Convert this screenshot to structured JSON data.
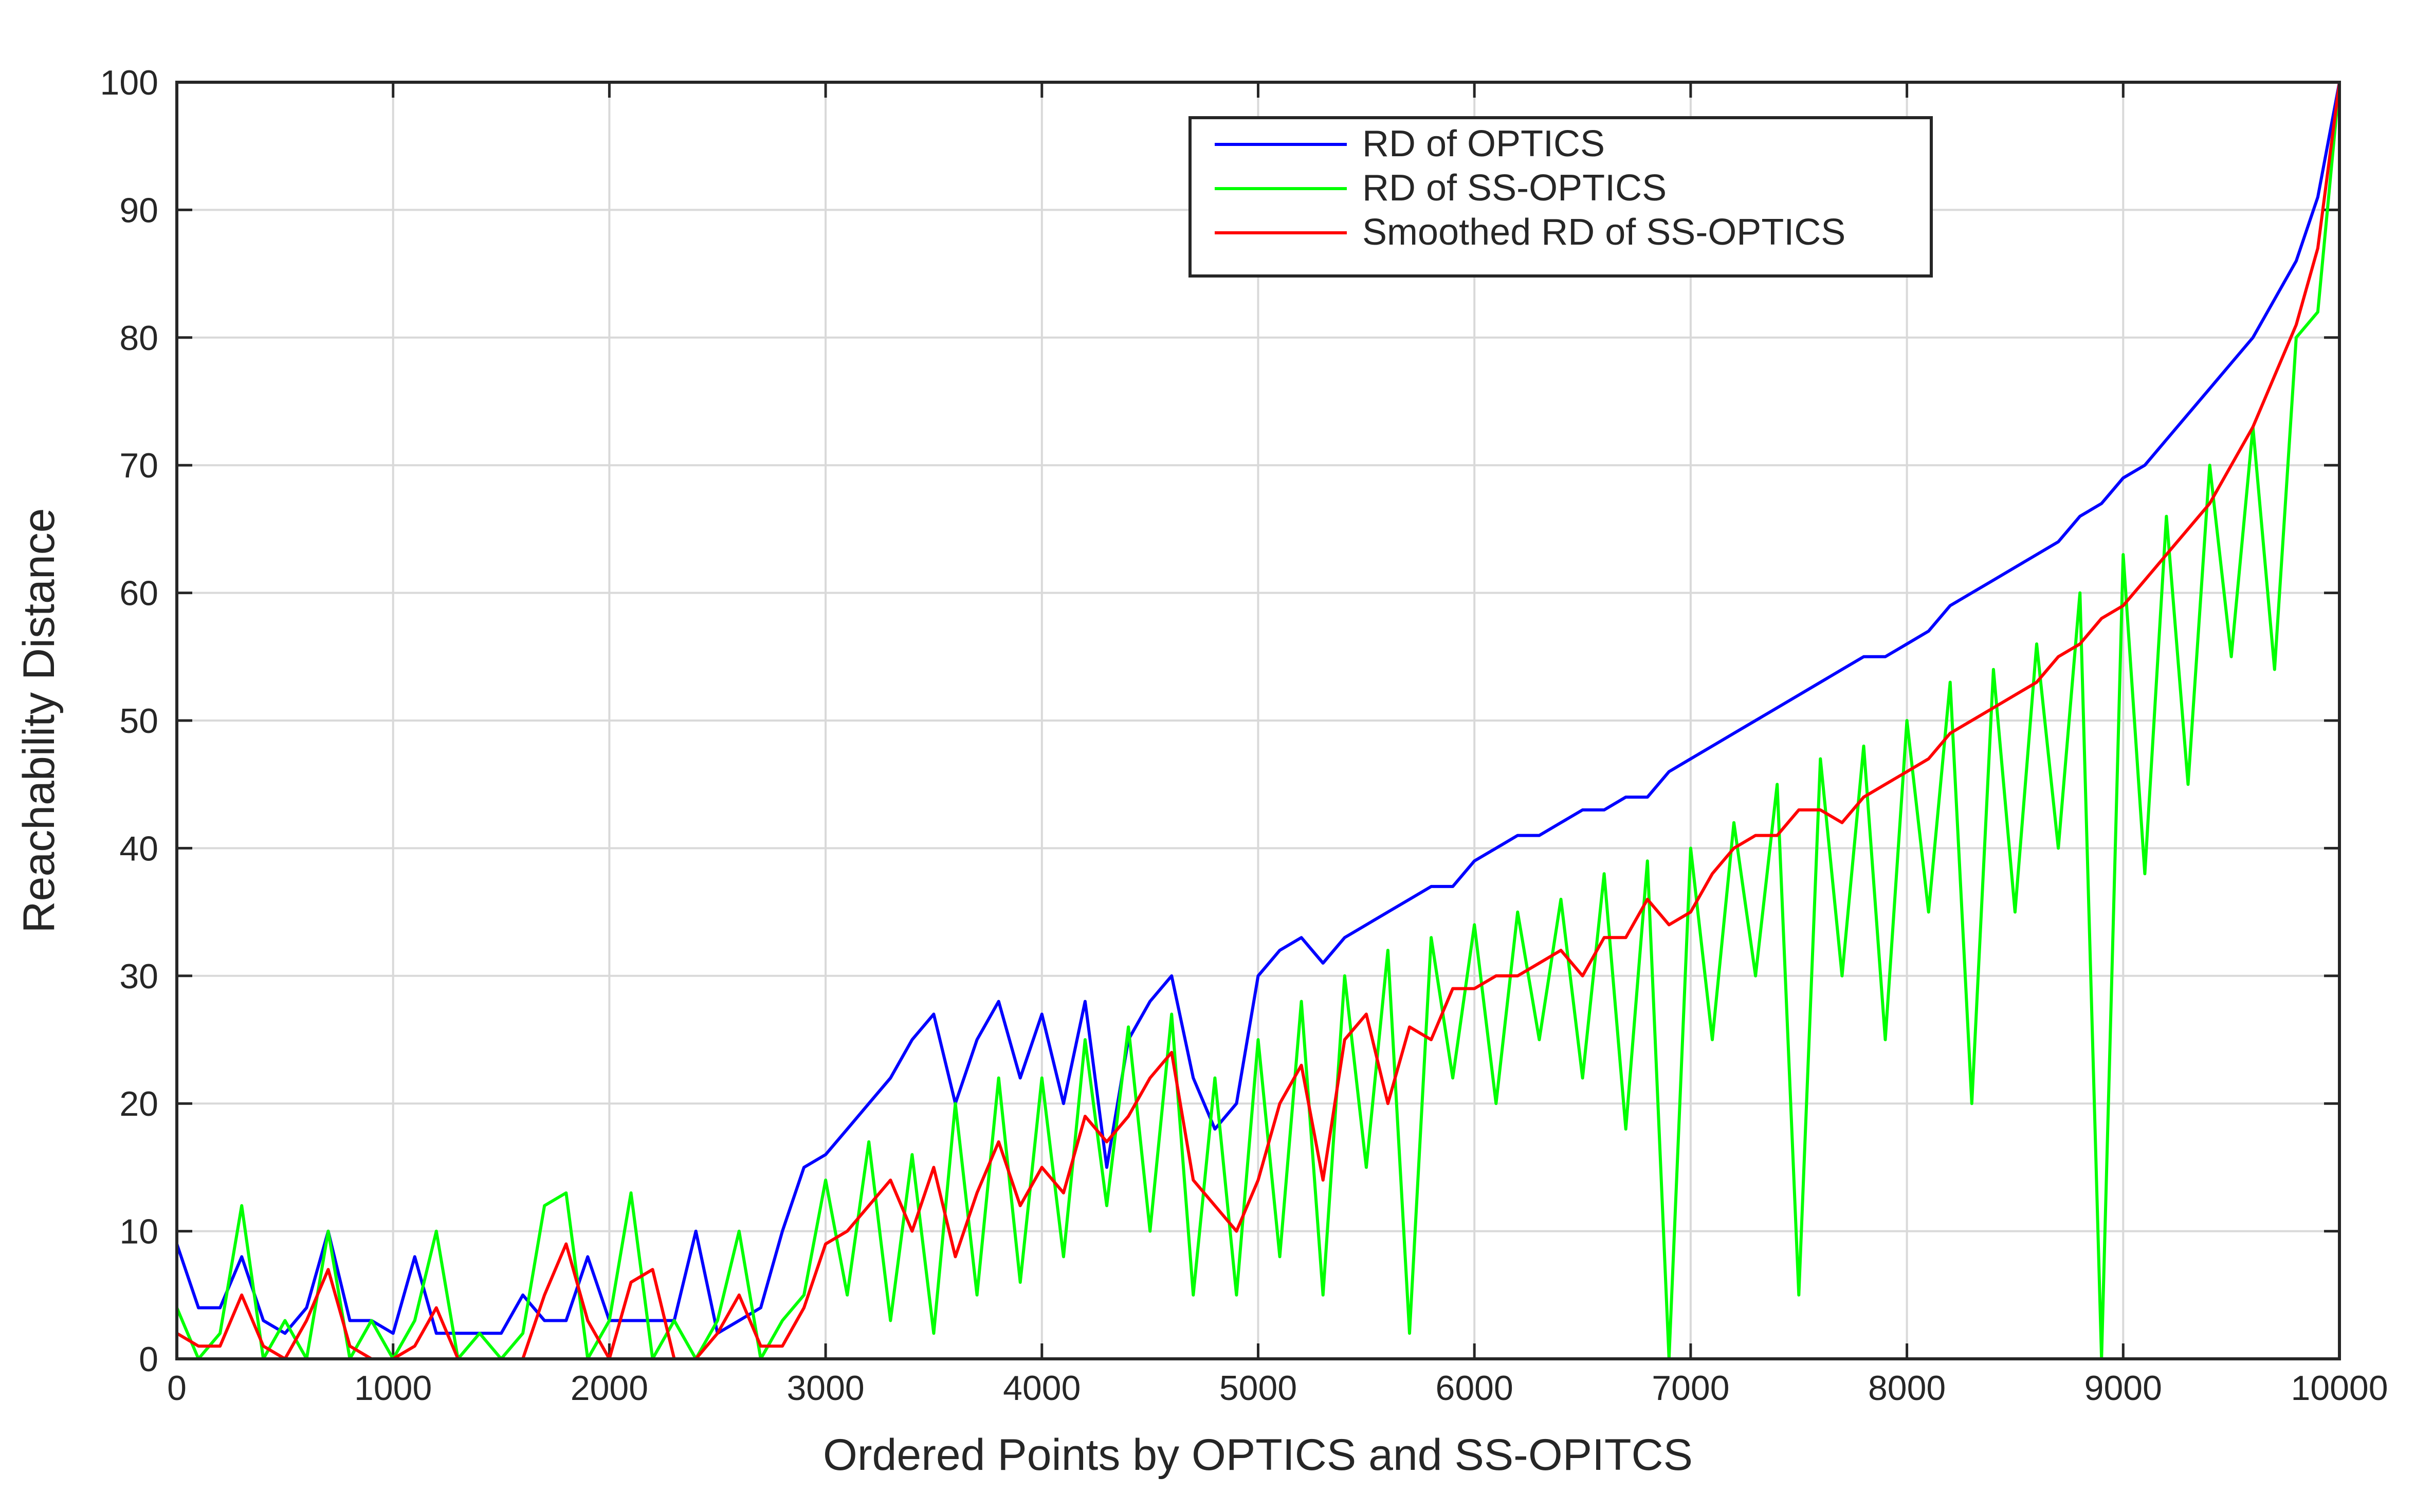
{
  "chart_data": {
    "type": "line",
    "xlabel": "Ordered Points by OPTICS and SS-OPITCS",
    "ylabel": "Reachability Distance",
    "x": [
      0,
      100,
      200,
      300,
      400,
      500,
      600,
      700,
      800,
      900,
      1000,
      1100,
      1200,
      1300,
      1400,
      1500,
      1600,
      1700,
      1800,
      1900,
      2000,
      2100,
      2200,
      2300,
      2400,
      2500,
      2600,
      2700,
      2800,
      2900,
      3000,
      3100,
      3200,
      3300,
      3400,
      3500,
      3600,
      3700,
      3800,
      3900,
      4000,
      4100,
      4200,
      4300,
      4400,
      4500,
      4600,
      4700,
      4800,
      4900,
      5000,
      5100,
      5200,
      5300,
      5400,
      5500,
      5600,
      5700,
      5800,
      5900,
      6000,
      6100,
      6200,
      6300,
      6400,
      6500,
      6600,
      6700,
      6800,
      6900,
      7000,
      7100,
      7200,
      7300,
      7400,
      7500,
      7600,
      7700,
      7800,
      7900,
      8000,
      8100,
      8200,
      8300,
      8400,
      8500,
      8600,
      8700,
      8800,
      8900,
      9000,
      9100,
      9200,
      9300,
      9400,
      9500,
      9600,
      9700,
      9800,
      9900,
      10000
    ],
    "series": [
      {
        "name": "RD of OPTICS",
        "color": "#0000ff",
        "values": [
          9,
          4,
          4,
          8,
          3,
          2,
          4,
          10,
          3,
          3,
          2,
          8,
          2,
          2,
          2,
          2,
          5,
          3,
          3,
          8,
          3,
          3,
          3,
          3,
          10,
          2,
          3,
          4,
          10,
          15,
          16,
          18,
          20,
          22,
          25,
          27,
          20,
          25,
          28,
          22,
          27,
          20,
          28,
          15,
          25,
          28,
          30,
          22,
          18,
          20,
          30,
          32,
          33,
          31,
          33,
          34,
          35,
          36,
          37,
          37,
          39,
          40,
          41,
          41,
          42,
          43,
          43,
          44,
          44,
          46,
          47,
          48,
          49,
          50,
          51,
          52,
          53,
          54,
          55,
          55,
          56,
          57,
          59,
          60,
          61,
          62,
          63,
          64,
          66,
          67,
          69,
          70,
          72,
          74,
          76,
          78,
          80,
          83,
          86,
          91,
          100
        ]
      },
      {
        "name": "RD of SS-OPTICS",
        "color": "#00ff00",
        "values": [
          4,
          0,
          2,
          12,
          0,
          3,
          0,
          10,
          0,
          3,
          0,
          3,
          10,
          0,
          2,
          0,
          2,
          12,
          13,
          0,
          3,
          13,
          0,
          3,
          0,
          3,
          10,
          0,
          3,
          5,
          14,
          5,
          17,
          3,
          16,
          2,
          20,
          5,
          22,
          6,
          22,
          8,
          25,
          12,
          26,
          10,
          27,
          5,
          22,
          5,
          25,
          8,
          28,
          5,
          30,
          15,
          32,
          2,
          33,
          22,
          34,
          20,
          35,
          25,
          36,
          22,
          38,
          18,
          39,
          0,
          40,
          25,
          42,
          30,
          45,
          5,
          47,
          30,
          48,
          25,
          50,
          35,
          53,
          20,
          54,
          35,
          56,
          40,
          60,
          0,
          63,
          38,
          66,
          45,
          70,
          55,
          73,
          54,
          80,
          82,
          100
        ]
      },
      {
        "name": "Smoothed RD of SS-OPTICS",
        "color": "#ff0000",
        "values": [
          2,
          1,
          1,
          5,
          1,
          0,
          3,
          7,
          1,
          0,
          0,
          1,
          4,
          0,
          0,
          0,
          0,
          5,
          9,
          3,
          0,
          6,
          7,
          0,
          0,
          2,
          5,
          1,
          1,
          4,
          9,
          10,
          12,
          14,
          10,
          15,
          8,
          13,
          17,
          12,
          15,
          13,
          19,
          17,
          19,
          22,
          24,
          14,
          12,
          10,
          14,
          20,
          23,
          14,
          25,
          27,
          20,
          26,
          25,
          29,
          29,
          30,
          30,
          31,
          32,
          30,
          33,
          33,
          36,
          34,
          35,
          38,
          40,
          41,
          41,
          43,
          43,
          42,
          44,
          45,
          46,
          47,
          49,
          50,
          51,
          52,
          53,
          55,
          56,
          58,
          59,
          61,
          63,
          65,
          67,
          70,
          73,
          77,
          81,
          87,
          100
        ]
      }
    ],
    "xlim": [
      0,
      10000
    ],
    "ylim": [
      0,
      100
    ],
    "xticks": [
      0,
      1000,
      2000,
      3000,
      4000,
      5000,
      6000,
      7000,
      8000,
      9000,
      10000
    ],
    "yticks": [
      0,
      10,
      20,
      30,
      40,
      50,
      60,
      70,
      80,
      90,
      100
    ],
    "grid": true,
    "legend": "upper center"
  }
}
